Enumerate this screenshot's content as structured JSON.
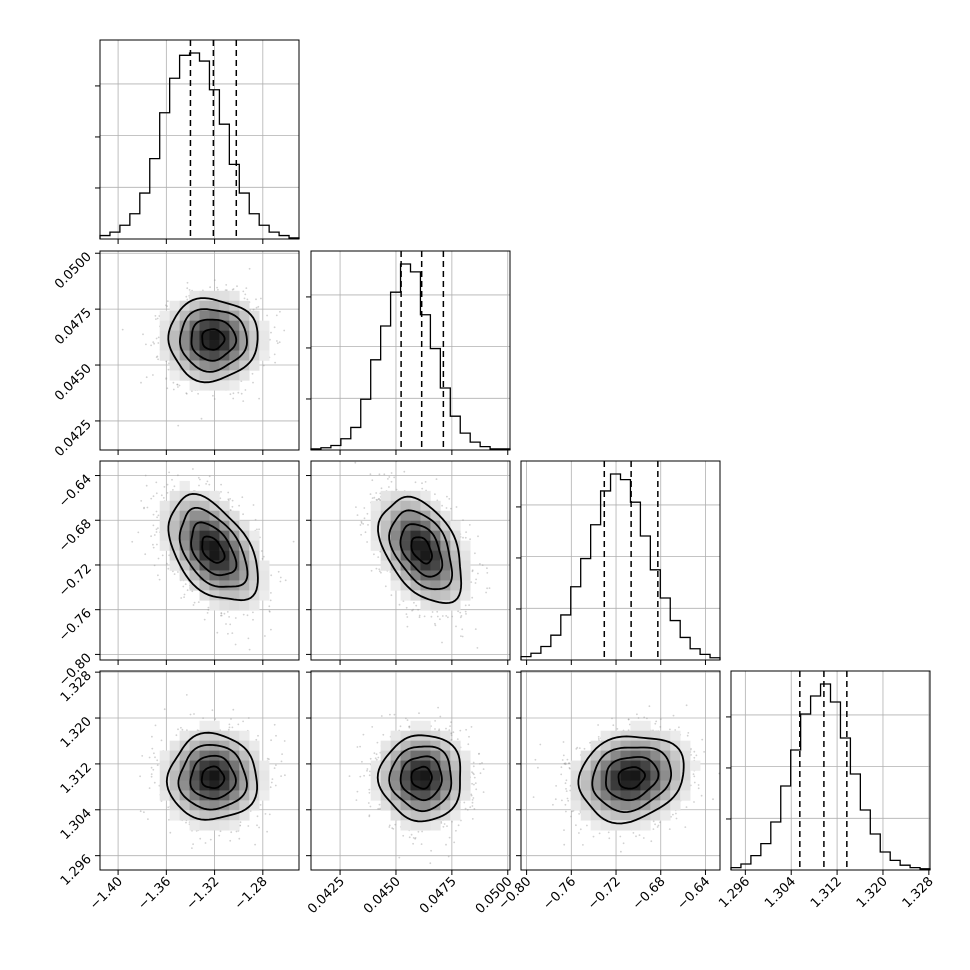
{
  "chart_data": {
    "type": "corner",
    "parameters": [
      {
        "index": 0,
        "range": [
          -1.415,
          -1.25
        ],
        "ticks": [
          -1.4,
          -1.36,
          -1.32,
          -1.28
        ],
        "tick_labels": [
          "−1.40",
          "−1.36",
          "−1.32",
          "−1.28"
        ],
        "mean": -1.3215,
        "std": 0.0185,
        "quantiles": [
          -1.34,
          -1.321,
          -1.302
        ],
        "hist_max": 0.115
      },
      {
        "index": 1,
        "range": [
          0.0412,
          0.0501
        ],
        "ticks": [
          0.0425,
          0.045,
          0.0475,
          0.05
        ],
        "tick_labels": [
          "0.0425",
          "0.0450",
          "0.0475",
          "0.0500"
        ],
        "mean": 0.04615,
        "std": 0.00092,
        "quantiles": [
          0.04523,
          0.04615,
          0.04712
        ],
        "hist_max": 0.12
      },
      {
        "index": 2,
        "range": [
          -0.805,
          -0.627
        ],
        "ticks": [
          -0.8,
          -0.76,
          -0.72,
          -0.68,
          -0.64
        ],
        "tick_labels": [
          "−0.80",
          "−0.76",
          "−0.72",
          "−0.68",
          "−0.64"
        ],
        "mean": -0.7065,
        "std": 0.0235,
        "quantiles": [
          -0.7305,
          -0.7065,
          -0.6826
        ],
        "hist_max": 0.122
      },
      {
        "index": 3,
        "range": [
          1.2935,
          1.3282
        ],
        "ticks": [
          1.296,
          1.304,
          1.312,
          1.32,
          1.328
        ],
        "tick_labels": [
          "1.296",
          "1.304",
          "1.312",
          "1.320",
          "1.328"
        ],
        "mean": 1.3096,
        "std": 0.00375,
        "quantiles": [
          1.3055,
          1.3097,
          1.3137
        ],
        "hist_max": 0.12
      }
    ],
    "histograms": {
      "bins": 20,
      "densities": [
        [
          0.003,
          0.006,
          0.012,
          0.022,
          0.04,
          0.07,
          0.11,
          0.14,
          0.16,
          0.162,
          0.155,
          0.13,
          0.1,
          0.065,
          0.04,
          0.022,
          0.012,
          0.006,
          0.003,
          0.001
        ],
        [
          0.001,
          0.002,
          0.004,
          0.01,
          0.02,
          0.045,
          0.08,
          0.11,
          0.14,
          0.165,
          0.158,
          0.12,
          0.09,
          0.055,
          0.03,
          0.015,
          0.007,
          0.003,
          0.001,
          0.001
        ],
        [
          0.003,
          0.006,
          0.012,
          0.022,
          0.04,
          0.065,
          0.09,
          0.12,
          0.15,
          0.165,
          0.16,
          0.14,
          0.11,
          0.08,
          0.055,
          0.035,
          0.02,
          0.01,
          0.005,
          0.002
        ],
        [
          0.002,
          0.005,
          0.012,
          0.022,
          0.04,
          0.07,
          0.1,
          0.13,
          0.145,
          0.155,
          0.14,
          0.11,
          0.08,
          0.05,
          0.03,
          0.015,
          0.008,
          0.004,
          0.002,
          0.001
        ]
      ]
    },
    "correlations": [
      {
        "pair": [
          1,
          0
        ],
        "rho": 0.0
      },
      {
        "pair": [
          2,
          0
        ],
        "rho": -0.45
      },
      {
        "pair": [
          2,
          1
        ],
        "rho": -0.42
      },
      {
        "pair": [
          3,
          0
        ],
        "rho": 0.0
      },
      {
        "pair": [
          3,
          1
        ],
        "rho": 0.0
      },
      {
        "pair": [
          3,
          2
        ],
        "rho": 0.15
      }
    ],
    "contour_sigmas": [
      0.5,
      1.0,
      1.5,
      2.0
    ],
    "grid": true,
    "colors": {
      "line": "#000000",
      "grid": "#b0b0b0",
      "points": "#9a9a9a"
    }
  }
}
